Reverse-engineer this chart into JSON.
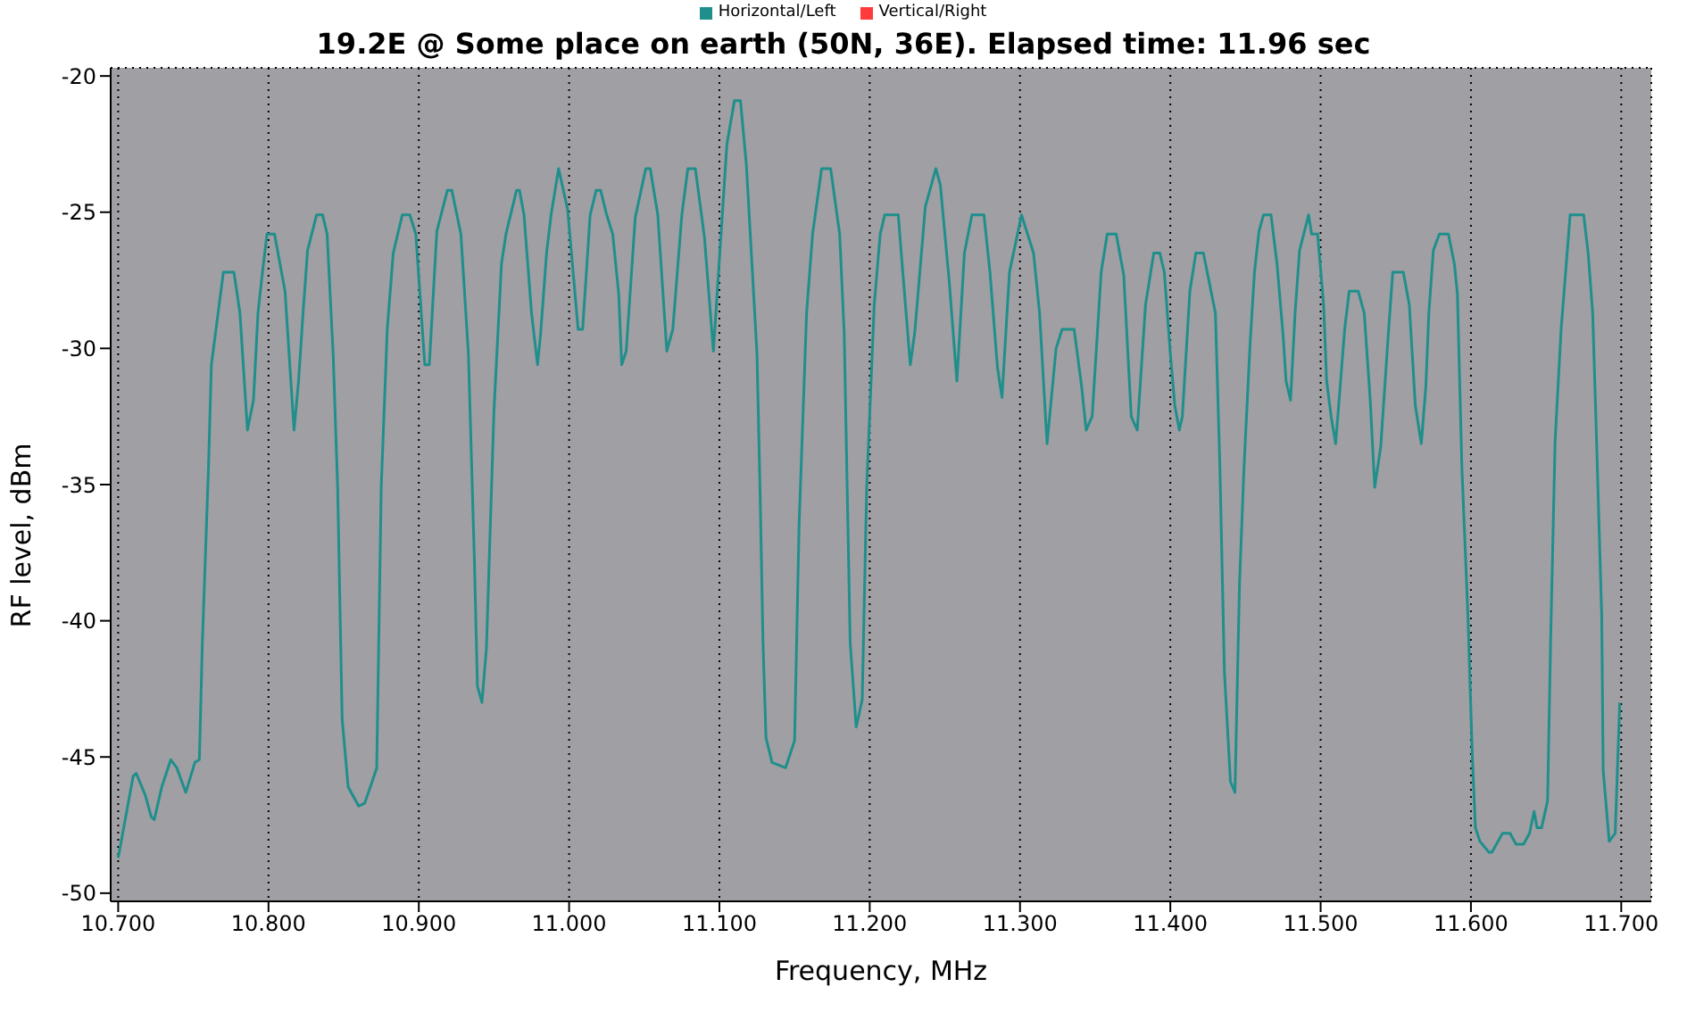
{
  "chart_data": {
    "type": "line",
    "title": "19.2E @ Some place on earth (50N, 36E). Elapsed time: 11.96 sec",
    "xlabel": "Frequency, MHz",
    "ylabel": "RF level, dBm",
    "x": [
      10.7,
      10.71,
      10.712,
      10.718,
      10.722,
      10.724,
      10.729,
      10.735,
      10.739,
      10.745,
      10.751,
      10.754,
      10.756,
      10.76,
      10.762,
      10.77,
      10.777,
      10.781,
      10.786,
      10.79,
      10.793,
      10.796,
      10.799,
      10.804,
      10.811,
      10.817,
      10.82,
      10.823,
      10.826,
      10.832,
      10.836,
      10.839,
      10.843,
      10.846,
      10.849,
      10.853,
      10.86,
      10.864,
      10.869,
      10.872,
      10.875,
      10.879,
      10.883,
      10.889,
      10.894,
      10.898,
      10.904,
      10.907,
      10.912,
      10.919,
      10.922,
      10.928,
      10.933,
      10.937,
      10.939,
      10.942,
      10.945,
      10.95,
      10.955,
      10.958,
      10.965,
      10.967,
      10.97,
      10.975,
      10.979,
      10.981,
      10.985,
      10.988,
      10.993,
      10.999,
      11.003,
      11.006,
      11.009,
      11.014,
      11.018,
      11.021,
      11.025,
      11.029,
      11.033,
      11.035,
      11.038,
      11.044,
      11.051,
      11.054,
      11.059,
      11.065,
      11.069,
      11.075,
      11.079,
      11.084,
      11.09,
      11.096,
      11.105,
      11.11,
      11.114,
      11.118,
      11.125,
      11.127,
      11.129,
      11.131,
      11.135,
      11.144,
      11.15,
      11.153,
      11.158,
      11.162,
      11.168,
      11.174,
      11.18,
      11.183,
      11.187,
      11.191,
      11.195,
      11.198,
      11.203,
      11.207,
      11.21,
      11.219,
      11.222,
      11.227,
      11.23,
      11.237,
      11.244,
      11.247,
      11.253,
      11.258,
      11.263,
      11.268,
      11.276,
      11.28,
      11.285,
      11.288,
      11.293,
      11.301,
      11.309,
      11.313,
      11.318,
      11.324,
      11.328,
      11.336,
      11.341,
      11.344,
      11.348,
      11.354,
      11.358,
      11.364,
      11.369,
      11.374,
      11.378,
      11.3835,
      11.389,
      11.393,
      11.396,
      11.4,
      11.403,
      11.406,
      11.408,
      11.413,
      11.417,
      11.422,
      11.426,
      11.43,
      11.433,
      11.436,
      11.44,
      11.443,
      11.446,
      11.449,
      11.453,
      11.456,
      11.459,
      11.462,
      11.467,
      11.471,
      11.475,
      11.477,
      11.48,
      11.483,
      11.486,
      11.492,
      11.494,
      11.498,
      11.502,
      11.504,
      11.507,
      11.51,
      11.513,
      11.516,
      11.519,
      11.525,
      11.529,
      11.533,
      11.536,
      11.54,
      11.545,
      11.548,
      11.555,
      11.559,
      11.563,
      11.567,
      11.57,
      11.572,
      11.575,
      11.579,
      11.585,
      11.589,
      11.591,
      11.594,
      11.598,
      11.601,
      11.603,
      11.606,
      11.612,
      11.614,
      11.621,
      11.626,
      11.63,
      11.635,
      11.639,
      11.642,
      11.644,
      11.647,
      11.651,
      11.653,
      11.656,
      11.66,
      11.666,
      11.675,
      11.678,
      11.681,
      11.683,
      11.687,
      11.688,
      11.692,
      11.696,
      11.699
    ],
    "series": [
      {
        "name": "Horizontal/Left",
        "color": "#1f8f8c",
        "values": [
          -48.7,
          -45.7,
          -45.6,
          -46.4,
          -47.2,
          -47.3,
          -46.1,
          -45.1,
          -45.4,
          -46.3,
          -45.2,
          -45.1,
          -40.8,
          -34.5,
          -30.6,
          -27.2,
          -27.2,
          -28.7,
          -33.0,
          -31.9,
          -28.7,
          -27.2,
          -25.8,
          -25.8,
          -27.9,
          -33.0,
          -31.2,
          -28.7,
          -26.4,
          -25.1,
          -25.1,
          -25.8,
          -30.2,
          -35.1,
          -43.6,
          -46.1,
          -46.8,
          -46.7,
          -45.9,
          -45.4,
          -35.1,
          -29.3,
          -26.5,
          -25.1,
          -25.1,
          -25.8,
          -30.6,
          -30.6,
          -25.7,
          -24.2,
          -24.2,
          -25.8,
          -30.2,
          -37.8,
          -42.4,
          -43.0,
          -41.0,
          -32.3,
          -26.9,
          -25.8,
          -24.2,
          -24.2,
          -25.1,
          -28.7,
          -30.6,
          -29.5,
          -26.5,
          -25.1,
          -23.4,
          -24.9,
          -27.4,
          -29.3,
          -29.3,
          -25.1,
          -24.2,
          -24.2,
          -25.1,
          -25.8,
          -28.0,
          -30.6,
          -30.1,
          -25.2,
          -23.4,
          -23.4,
          -25.1,
          -30.1,
          -29.3,
          -25.1,
          -23.4,
          -23.4,
          -25.9,
          -30.1,
          -22.5,
          -20.9,
          -20.9,
          -23.3,
          -30.2,
          -35.1,
          -40.8,
          -44.3,
          -45.2,
          -45.4,
          -44.4,
          -36.5,
          -28.7,
          -25.8,
          -23.4,
          -23.4,
          -25.8,
          -29.4,
          -40.8,
          -43.9,
          -42.9,
          -35.1,
          -28.4,
          -25.8,
          -25.1,
          -25.1,
          -27.2,
          -30.6,
          -29.4,
          -24.8,
          -23.4,
          -24.0,
          -27.6,
          -31.2,
          -26.5,
          -25.1,
          -25.1,
          -27.2,
          -30.7,
          -31.8,
          -27.2,
          -25.1,
          -26.5,
          -28.7,
          -33.5,
          -30.0,
          -29.3,
          -29.3,
          -31.4,
          -33.0,
          -32.5,
          -27.2,
          -25.8,
          -25.8,
          -27.3,
          -32.5,
          -33.0,
          -28.4,
          -26.5,
          -26.5,
          -27.2,
          -30.2,
          -32.1,
          -33.0,
          -32.5,
          -27.9,
          -26.5,
          -26.5,
          -27.6,
          -28.7,
          -34.4,
          -41.9,
          -45.9,
          -46.3,
          -38.7,
          -34.4,
          -29.9,
          -27.2,
          -25.7,
          -25.1,
          -25.1,
          -26.9,
          -29.5,
          -31.2,
          -31.9,
          -28.7,
          -26.4,
          -25.1,
          -25.8,
          -25.8,
          -28.4,
          -31.2,
          -32.5,
          -33.5,
          -31.4,
          -29.3,
          -27.9,
          -27.9,
          -28.7,
          -31.9,
          -35.1,
          -33.6,
          -29.5,
          -27.2,
          -27.2,
          -28.4,
          -32.1,
          -33.5,
          -31.4,
          -28.7,
          -26.4,
          -25.8,
          -25.8,
          -26.9,
          -28.0,
          -34.4,
          -39.8,
          -45.1,
          -47.6,
          -48.1,
          -48.5,
          -48.5,
          -47.8,
          -47.8,
          -48.2,
          -48.2,
          -47.8,
          -47.0,
          -47.6,
          -47.6,
          -46.6,
          -40.8,
          -33.4,
          -29.3,
          -25.1,
          -25.1,
          -26.5,
          -28.7,
          -32.3,
          -39.8,
          -45.5,
          -48.1,
          -47.8,
          -43.0
        ]
      },
      {
        "name": "Vertical/Right",
        "color": "#ff3b3b",
        "values": [
          null,
          null,
          null,
          null,
          null,
          null,
          null,
          null,
          null,
          null,
          null,
          null,
          null,
          null,
          null,
          null,
          null,
          null,
          null,
          null,
          null,
          null,
          null,
          null,
          null,
          null,
          null,
          null,
          null,
          null,
          null,
          null,
          null,
          null,
          null,
          null,
          null,
          null,
          null,
          null,
          null,
          null,
          null,
          null,
          null,
          null,
          null,
          null,
          null,
          null,
          null,
          null,
          null,
          null,
          null,
          null,
          null,
          null,
          null,
          null,
          null,
          null,
          null,
          null,
          null,
          null,
          null,
          null,
          null,
          null,
          null,
          null,
          null,
          null,
          null,
          null,
          null,
          null,
          null,
          null,
          null,
          null,
          null,
          null,
          null,
          null,
          null,
          null,
          null,
          null,
          null,
          null,
          null,
          null,
          null,
          null,
          null,
          null,
          null,
          null,
          null,
          null,
          null,
          null,
          null,
          null,
          null,
          null,
          null,
          null,
          null,
          null,
          null,
          null,
          null,
          null,
          null,
          null,
          null,
          null,
          null,
          null,
          null,
          null,
          null,
          null,
          null,
          null,
          null,
          null,
          null,
          null,
          null,
          null,
          null,
          null,
          null,
          null,
          null,
          null,
          null,
          null,
          null,
          null,
          null,
          null,
          null,
          null,
          null,
          null,
          null,
          null,
          null,
          null,
          null,
          null,
          null,
          null,
          null,
          null,
          null,
          null,
          null,
          null,
          null,
          null,
          null,
          null,
          null,
          null,
          null,
          null,
          null,
          null,
          null,
          null,
          null,
          null,
          null,
          null,
          null,
          null,
          null,
          null,
          null,
          null,
          null,
          null,
          null,
          null,
          null,
          null,
          null,
          null,
          null,
          null,
          null,
          null,
          null,
          null,
          null,
          null,
          null,
          null,
          null,
          null,
          null,
          null,
          null,
          null,
          null,
          null,
          null,
          null,
          null,
          null,
          null,
          null,
          null,
          null,
          null,
          null,
          null,
          null,
          null,
          null,
          null,
          null,
          null,
          null,
          null,
          null,
          null,
          null,
          null,
          null
        ]
      }
    ],
    "xlim": [
      10.695,
      11.72
    ],
    "ylim": [
      -50.3,
      -19.7
    ],
    "xticks": [
      {
        "value": 10.7,
        "label": "10.700"
      },
      {
        "value": 10.8,
        "label": "10.800"
      },
      {
        "value": 10.9,
        "label": "10.900"
      },
      {
        "value": 11.0,
        "label": "11.000"
      },
      {
        "value": 11.1,
        "label": "11.100"
      },
      {
        "value": 11.2,
        "label": "11.200"
      },
      {
        "value": 11.3,
        "label": "11.300"
      },
      {
        "value": 11.4,
        "label": "11.400"
      },
      {
        "value": 11.5,
        "label": "11.500"
      },
      {
        "value": 11.6,
        "label": "11.600"
      },
      {
        "value": 11.7,
        "label": "11.700"
      }
    ],
    "yticks": [
      -50,
      -45,
      -40,
      -35,
      -30,
      -25,
      -20
    ],
    "grid": true,
    "legend": "top",
    "marker": "none",
    "line_style": "solid"
  }
}
